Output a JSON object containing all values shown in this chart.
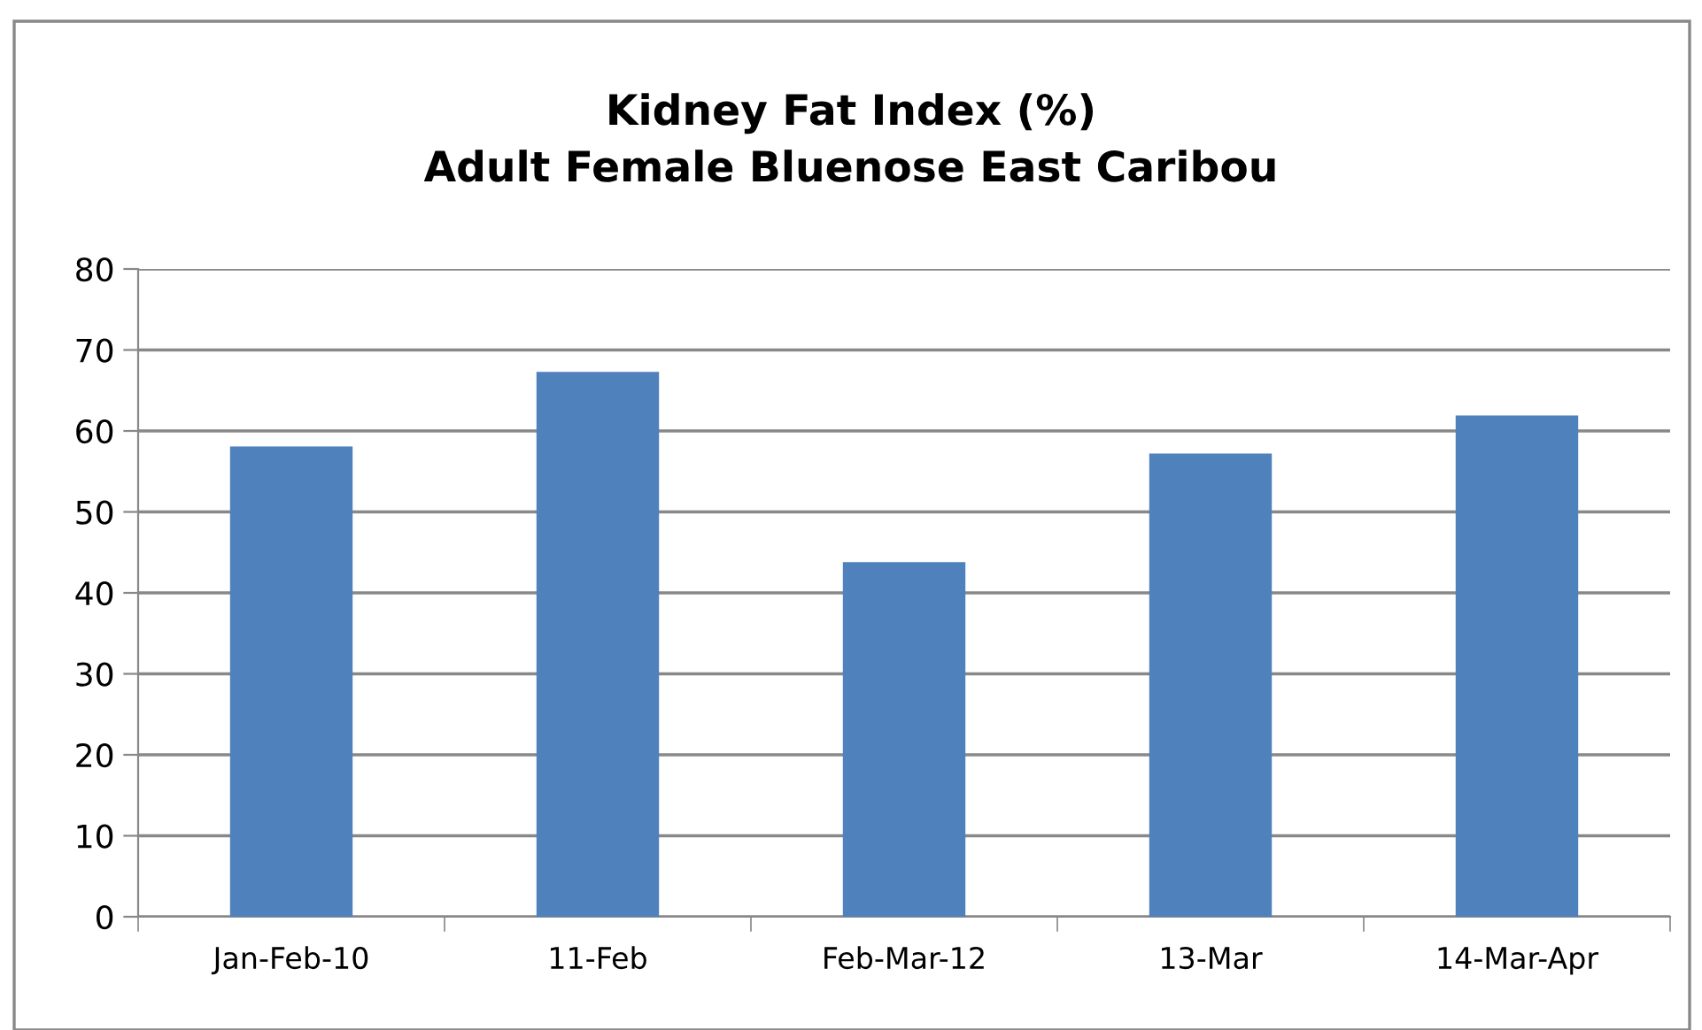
{
  "chart_data": {
    "type": "bar",
    "title": "Kidney Fat Index (%)\nAdult Female Bluenose East Caribou",
    "categories": [
      "Jan-Feb-10",
      "11-Feb",
      "Feb-Mar-12",
      "13-Mar",
      "14-Mar-Apr"
    ],
    "values": [
      58.1,
      67.3,
      43.8,
      57.2,
      61.9
    ],
    "color": "#4f81bd",
    "ylim": [
      0,
      80
    ],
    "yticks": [
      0,
      10,
      20,
      30,
      40,
      50,
      60,
      70,
      80
    ],
    "grid": "y",
    "legend": false
  }
}
